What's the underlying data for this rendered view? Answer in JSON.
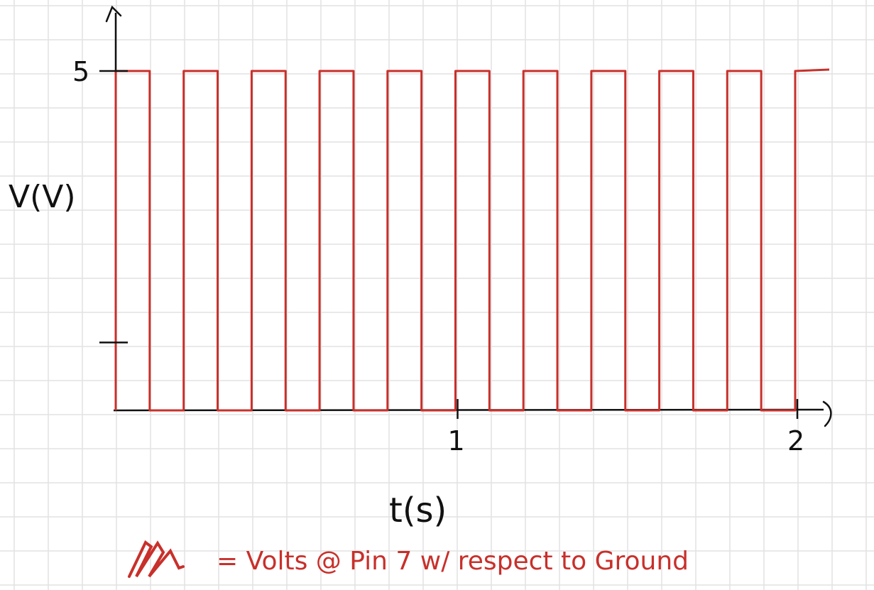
{
  "colors": {
    "grid": "#e2e2e2",
    "ink": "#111111",
    "signal": "#c8302b"
  },
  "chart_data": {
    "type": "line",
    "title": "",
    "xlabel": "t(s)",
    "ylabel": "V(V)",
    "xlim": [
      0,
      2.1
    ],
    "ylim": [
      0,
      5
    ],
    "x_ticks": [
      {
        "value": 1,
        "label": "1"
      },
      {
        "value": 2,
        "label": "2"
      }
    ],
    "y_ticks": [
      {
        "value": 1,
        "label": ""
      },
      {
        "value": 5,
        "label": "5"
      }
    ],
    "grid": true,
    "series": [
      {
        "name": "",
        "square_wave": {
          "period": 0.2,
          "duty_cycle": 0.5,
          "high": 5,
          "low": 0,
          "start": 0,
          "end": 2
        }
      }
    ],
    "legend": {
      "placement": "bottom-center",
      "text": "= Volts @ Pin 7 w/ respect to Ground"
    }
  }
}
